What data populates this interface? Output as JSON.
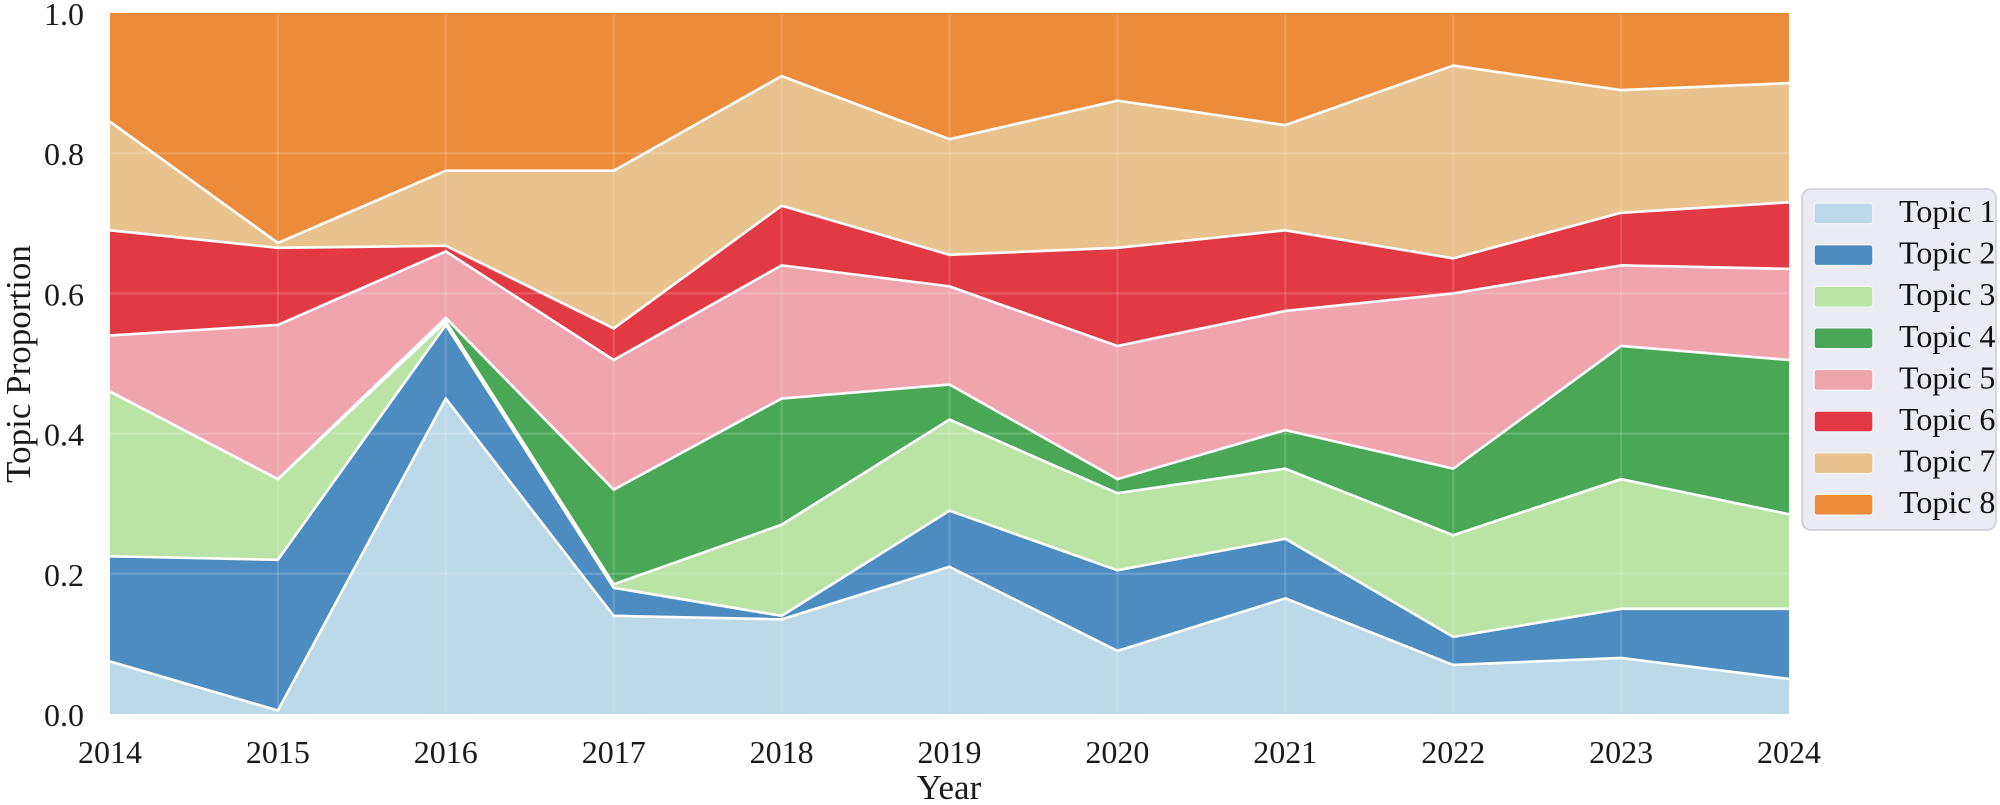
{
  "chart_data": {
    "type": "area",
    "stacked": true,
    "title": "",
    "xlabel": "Year",
    "ylabel": "Topic Proportion",
    "x": [
      2014,
      2015,
      2016,
      2017,
      2018,
      2019,
      2020,
      2021,
      2022,
      2023,
      2024
    ],
    "xtick_labels": [
      "2014",
      "2015",
      "2016",
      "2017",
      "2018",
      "2019",
      "2020",
      "2021",
      "2022",
      "2023",
      "2024"
    ],
    "ytick_values": [
      0.0,
      0.2,
      0.4,
      0.6,
      0.8,
      1.0
    ],
    "ytick_labels": [
      "0.0",
      "0.2",
      "0.4",
      "0.6",
      "0.8",
      "1.0"
    ],
    "ylim": [
      0.0,
      1.0
    ],
    "grid": true,
    "legend_position": "right",
    "series": [
      {
        "name": "Topic 1",
        "color": "#bcd9ea",
        "values": [
          0.075,
          0.005,
          0.45,
          0.14,
          0.135,
          0.21,
          0.09,
          0.165,
          0.07,
          0.08,
          0.05
        ]
      },
      {
        "name": "Topic 2",
        "color": "#4d8cc0",
        "values": [
          0.15,
          0.215,
          0.105,
          0.04,
          0.005,
          0.08,
          0.115,
          0.085,
          0.04,
          0.07,
          0.1
        ]
      },
      {
        "name": "Topic 3",
        "color": "#b9e4a6",
        "values": [
          0.235,
          0.115,
          0.005,
          0.005,
          0.13,
          0.13,
          0.11,
          0.1,
          0.145,
          0.185,
          0.135
        ]
      },
      {
        "name": "Topic 4",
        "color": "#4aa757",
        "values": [
          0.0,
          0.0,
          0.005,
          0.135,
          0.18,
          0.05,
          0.02,
          0.055,
          0.095,
          0.19,
          0.22
        ]
      },
      {
        "name": "Topic 5",
        "color": "#f0a4ad",
        "values": [
          0.08,
          0.22,
          0.095,
          0.185,
          0.19,
          0.14,
          0.19,
          0.17,
          0.25,
          0.115,
          0.13
        ]
      },
      {
        "name": "Topic 6",
        "color": "#e23a45",
        "values": [
          0.15,
          0.11,
          0.008,
          0.045,
          0.085,
          0.045,
          0.14,
          0.115,
          0.05,
          0.075,
          0.095
        ]
      },
      {
        "name": "Topic 7",
        "color": "#e9c38e",
        "values": [
          0.155,
          0.007,
          0.107,
          0.225,
          0.185,
          0.165,
          0.21,
          0.15,
          0.275,
          0.175,
          0.17
        ]
      },
      {
        "name": "Topic 8",
        "color": "#ec8c3a",
        "values": [
          0.155,
          0.328,
          0.225,
          0.225,
          0.09,
          0.18,
          0.125,
          0.16,
          0.075,
          0.11,
          0.1
        ]
      }
    ],
    "style": {
      "boundary_color": "#ffffff",
      "grid_color": "#ffffff",
      "legend_bg": "#ebebf3",
      "legend_border": "#cbcbd6"
    }
  }
}
